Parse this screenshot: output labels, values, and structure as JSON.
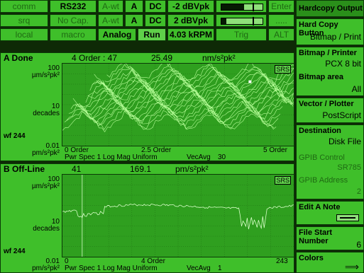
{
  "status": {
    "row1": [
      "comm",
      "RS232",
      "A-wt",
      "A",
      "DC",
      "-2 dBVpk",
      "",
      "Enter"
    ],
    "row2": [
      "srq",
      "No Cap.",
      "A-wt",
      "A",
      "DC",
      "2 dBVpk",
      "",
      "....."
    ],
    "row3": [
      "local",
      "macro",
      "Analog",
      "Run",
      "4.03 kRPM",
      "",
      "Trig",
      "ALT"
    ],
    "meter1_level": 0.55,
    "meter2_level": 0.12
  },
  "menu": {
    "header": "Hardcopy Output",
    "items": [
      {
        "title": "Hard Copy Button",
        "value": "Bitmap / Print"
      },
      {
        "title": "Bitmap / Printer",
        "value": "PCX 8 bit",
        "title2": "Bitmap area",
        "value2": "All"
      },
      {
        "title": "Vector / Plotter",
        "value": "PostScript"
      },
      {
        "title": "Destination",
        "value": "Disk File",
        "g1": "GPIB Control",
        "gv1": "SR785",
        "g2": "GPIB Address",
        "gv2": "2"
      },
      {
        "title": "Edit A Note"
      },
      {
        "title": "File Start Number",
        "value": "6"
      },
      {
        "title": "Colors"
      }
    ]
  },
  "traceA": {
    "name": "A Done",
    "order": "4 Order : 47",
    "value": "25.49",
    "units": "nm/s²pk²",
    "axis": {
      "top": "100",
      "top_units": "µm/s²pk²",
      "mid": "10",
      "mid_units": "decades",
      "wf": "wf 244",
      "bot": "0.01",
      "bot_units": "pm/s²pk²"
    },
    "x_left": "0 Order",
    "x_mid": "2.5 Order",
    "x_right": "5 Order",
    "footer": "Pwr Spec 1 Log Mag Uniform",
    "avg": "VecAvg",
    "avg_n": "30",
    "badge": "SRS"
  },
  "traceB": {
    "name": "B Off-Line",
    "order": "41",
    "value": "169.1",
    "units": "pm/s²pk²",
    "axis": {
      "top": "100",
      "top_units": "µm/s²pk²",
      "mid": "10",
      "mid_units": "decades",
      "wf": "wf 244",
      "bot": "0.01",
      "bot_units": "pm/s²pk²"
    },
    "x_left": "0",
    "x_mid": "4 Order",
    "x_right": "243",
    "footer": "Pwr Spec 1 Log Mag Uniform",
    "avg": "VecAvg",
    "avg_n": "1",
    "badge": "SRS"
  }
}
